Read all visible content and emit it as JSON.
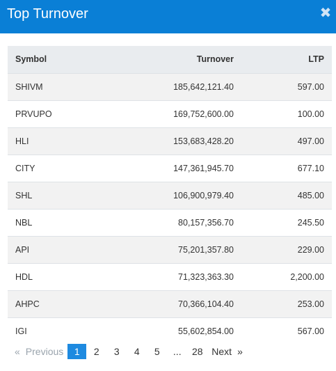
{
  "modal": {
    "title": "Top Turnover",
    "close_glyph": "✖"
  },
  "table": {
    "headers": {
      "symbol": "Symbol",
      "turnover": "Turnover",
      "ltp": "LTP"
    },
    "rows": [
      {
        "symbol": "SHIVM",
        "turnover": "185,642,121.40",
        "ltp": "597.00"
      },
      {
        "symbol": "PRVUPO",
        "turnover": "169,752,600.00",
        "ltp": "100.00"
      },
      {
        "symbol": "HLI",
        "turnover": "153,683,428.20",
        "ltp": "497.00"
      },
      {
        "symbol": "CITY",
        "turnover": "147,361,945.70",
        "ltp": "677.10"
      },
      {
        "symbol": "SHL",
        "turnover": "106,900,979.40",
        "ltp": "485.00"
      },
      {
        "symbol": "NBL",
        "turnover": "80,157,356.70",
        "ltp": "245.50"
      },
      {
        "symbol": "API",
        "turnover": "75,201,357.80",
        "ltp": "229.00"
      },
      {
        "symbol": "HDL",
        "turnover": "71,323,363.30",
        "ltp": "2,200.00"
      },
      {
        "symbol": "AHPC",
        "turnover": "70,366,104.40",
        "ltp": "253.00"
      },
      {
        "symbol": "IGI",
        "turnover": "55,602,854.00",
        "ltp": "567.00"
      }
    ]
  },
  "pagination": {
    "prev_glyph": "«",
    "prev_label": "Previous",
    "pages": [
      "1",
      "2",
      "3",
      "4",
      "5"
    ],
    "ellipsis": "...",
    "last_page": "28",
    "next_label": "Next",
    "next_glyph": "»",
    "current": "1"
  },
  "colors": {
    "header_bg": "#0a7fd6",
    "current_page_bg": "#1e8ae0"
  }
}
